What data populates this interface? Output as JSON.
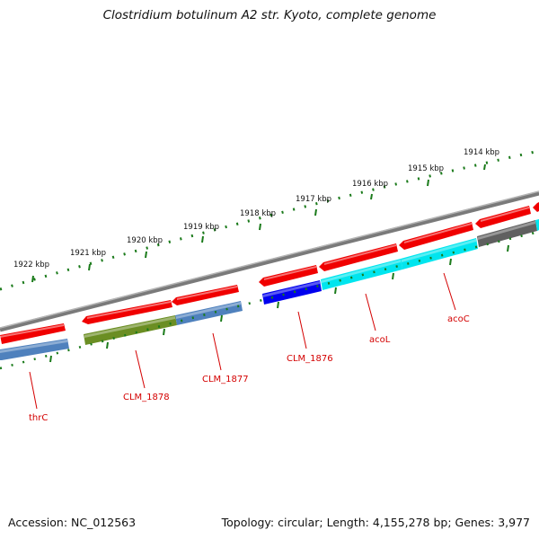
{
  "title": "Clostridium botulinum A2 str. Kyoto, complete genome",
  "footer": {
    "accession": "Accession: NC_012563",
    "topology": "Topology: circular; Length: 4,155,278 bp; Genes: 3,977"
  },
  "kbp_ticks": [
    "1914 kbp",
    "1915 kbp",
    "1916 kbp",
    "1917 kbp",
    "1918 kbp",
    "1919 kbp",
    "1920 kbp",
    "1921 kbp",
    "1922 kbp"
  ],
  "gene_labels": [
    "acoC",
    "acoL",
    "CLM_1876",
    "CLM_1877",
    "CLM_1878",
    "thrC"
  ],
  "colors": {
    "backbone": "#808080",
    "forward_gene": "#ff0000",
    "cds_steelblue": "#4f81bd",
    "cds_olive": "#6b8e23",
    "cds_blue": "#0000ee",
    "cds_cyan": "#00e5ee",
    "cds_gray": "#606060",
    "tick_green": "#1a7a1a",
    "label_red": "#d40000"
  }
}
